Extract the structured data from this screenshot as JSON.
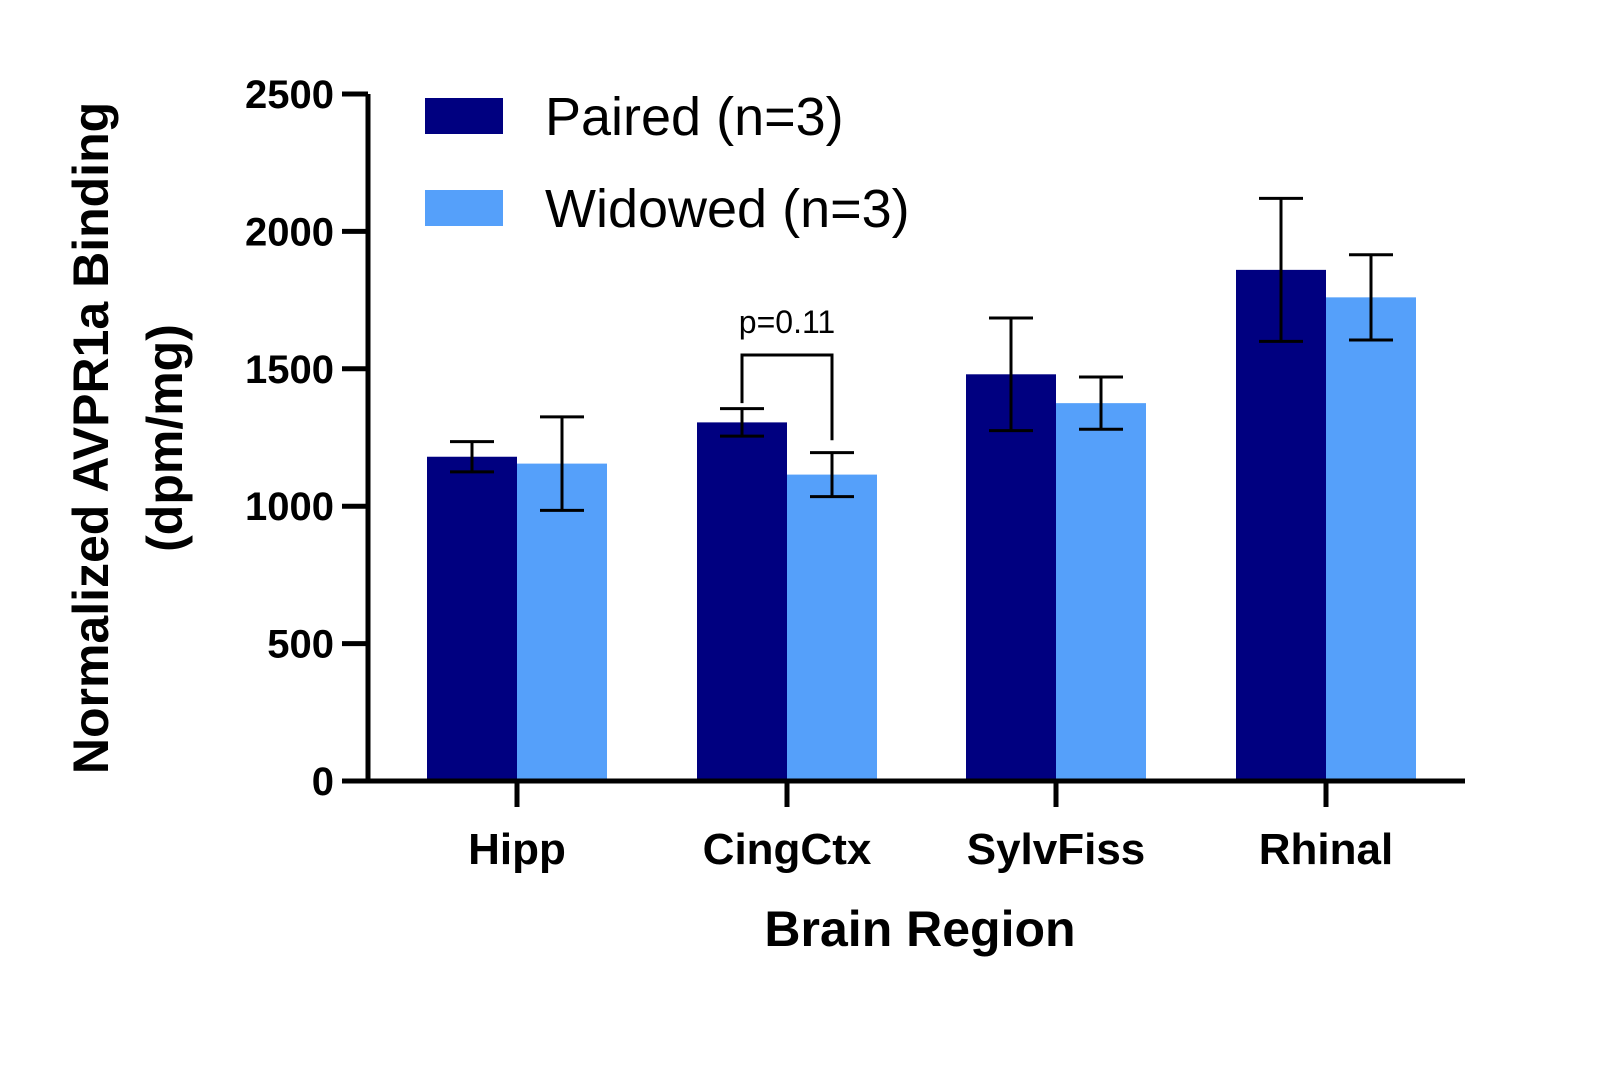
{
  "chart_data": {
    "type": "bar",
    "title": "",
    "xlabel": "Brain Region",
    "ylabel_line1": "Normalized AVPR1a Binding",
    "ylabel_line2": "(dpm/mg)",
    "ylim": [
      0,
      2500
    ],
    "yticks": [
      0,
      500,
      1000,
      1500,
      2000,
      2500
    ],
    "ytick_labels": [
      "0",
      "500",
      "1000",
      "1500",
      "2000",
      "2500"
    ],
    "categories": [
      "Hipp",
      "CingCtx",
      "SylvFiss",
      "Rhinal"
    ],
    "series": [
      {
        "name": "Paired (n=3)",
        "color": "#000080",
        "values": [
          1180,
          1305,
          1480,
          1860
        ],
        "errors": [
          55,
          50,
          205,
          260
        ]
      },
      {
        "name": "Widowed (n=3)",
        "color": "#55a0fa",
        "values": [
          1155,
          1115,
          1375,
          1760
        ],
        "errors": [
          170,
          80,
          95,
          155
        ]
      }
    ],
    "legend_position": "top-left",
    "annotations": [
      {
        "text": "p=0.11",
        "category": "CingCtx"
      }
    ],
    "grid": false
  }
}
